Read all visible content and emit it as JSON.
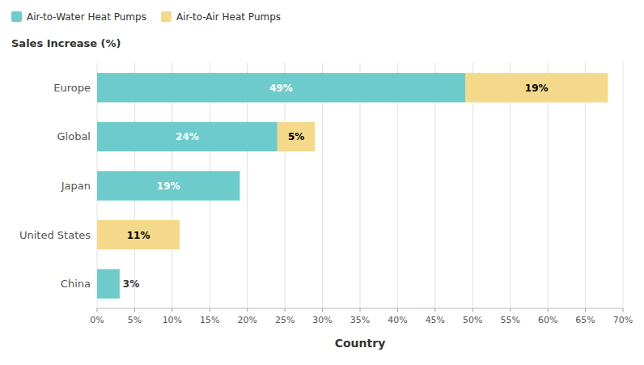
{
  "chart_data": {
    "type": "bar",
    "orientation": "horizontal",
    "stacked": true,
    "ylabel": "Sales Increase (%)",
    "xlabel": "Country",
    "categories": [
      "Europe",
      "Global",
      "Japan",
      "United States",
      "China"
    ],
    "series": [
      {
        "name": "Air-to-Water Heat Pumps",
        "color": "#6DCBCB",
        "values": [
          49,
          24,
          19,
          0,
          3
        ],
        "value_labels": [
          "49%",
          "24%",
          "19%",
          null,
          "3%"
        ]
      },
      {
        "name": "Air-to-Air Heat Pumps",
        "color": "#F5D98B",
        "values": [
          19,
          5,
          0,
          11,
          0
        ],
        "value_labels": [
          "19%",
          "5%",
          null,
          "11%",
          null
        ]
      }
    ],
    "xlim": [
      0,
      70
    ],
    "xticks": [
      {
        "value": 0,
        "label": "0%"
      },
      {
        "value": 5,
        "label": "5%"
      },
      {
        "value": 10,
        "label": "10%"
      },
      {
        "value": 15,
        "label": "15%"
      },
      {
        "value": 20,
        "label": "20%"
      },
      {
        "value": 25,
        "label": "25%"
      },
      {
        "value": 30,
        "label": "30%"
      },
      {
        "value": 35,
        "label": "35%"
      },
      {
        "value": 40,
        "label": "40%"
      },
      {
        "value": 45,
        "label": "45%"
      },
      {
        "value": 50,
        "label": "50%"
      },
      {
        "value": 55,
        "label": "55%"
      },
      {
        "value": 60,
        "label": "60%"
      },
      {
        "value": 65,
        "label": "65%"
      },
      {
        "value": 70,
        "label": "70%"
      }
    ],
    "grid": true,
    "legend": "upper left",
    "data_labels": true
  }
}
